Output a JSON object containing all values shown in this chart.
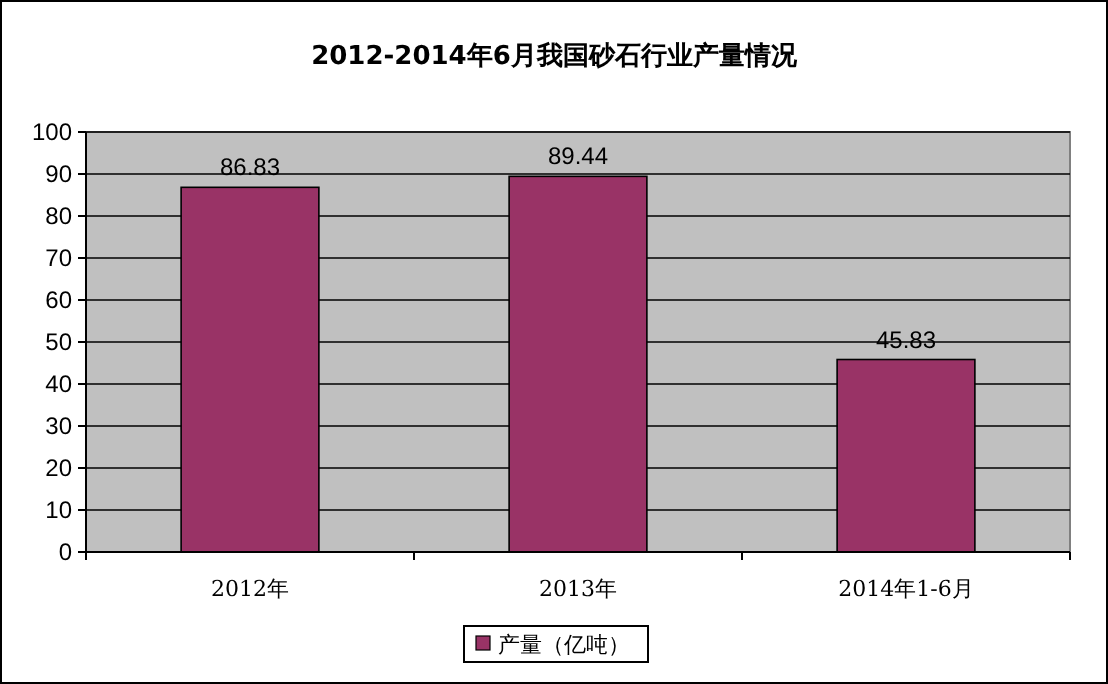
{
  "chart_data": {
    "type": "bar",
    "title": "2012-2014年6月我国砂石行业产量情况",
    "categories": [
      "2012年",
      "2013年",
      "2014年1-6月"
    ],
    "series": [
      {
        "name": "产量（亿吨）",
        "color": "#993366",
        "values": [
          86.83,
          89.44,
          45.83
        ]
      }
    ],
    "ylim": [
      0,
      100
    ],
    "yticks": [
      0,
      10,
      20,
      30,
      40,
      50,
      60,
      70,
      80,
      90,
      100
    ],
    "grid": "y",
    "legend": "bottom",
    "data_labels": true
  }
}
